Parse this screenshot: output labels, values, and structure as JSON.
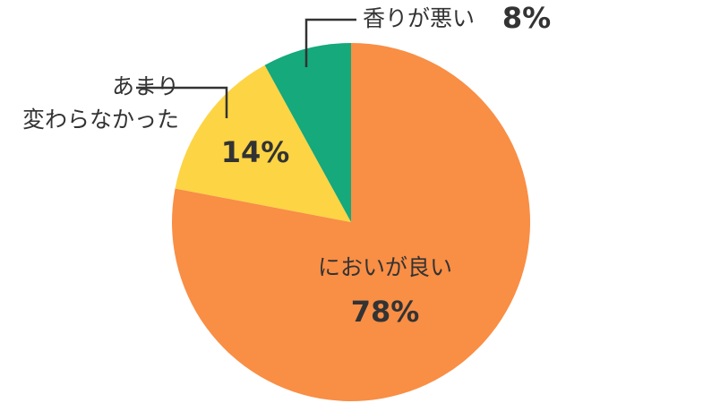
{
  "chart_data": {
    "type": "pie",
    "categories": [
      "においが良い",
      "あまり\n変わらなかった",
      "香りが悪い"
    ],
    "values": [
      78,
      14,
      8
    ],
    "value_labels": [
      "78%",
      "14%",
      "8%"
    ],
    "colors": [
      "#f98e45",
      "#fdd444",
      "#15a97b"
    ]
  }
}
